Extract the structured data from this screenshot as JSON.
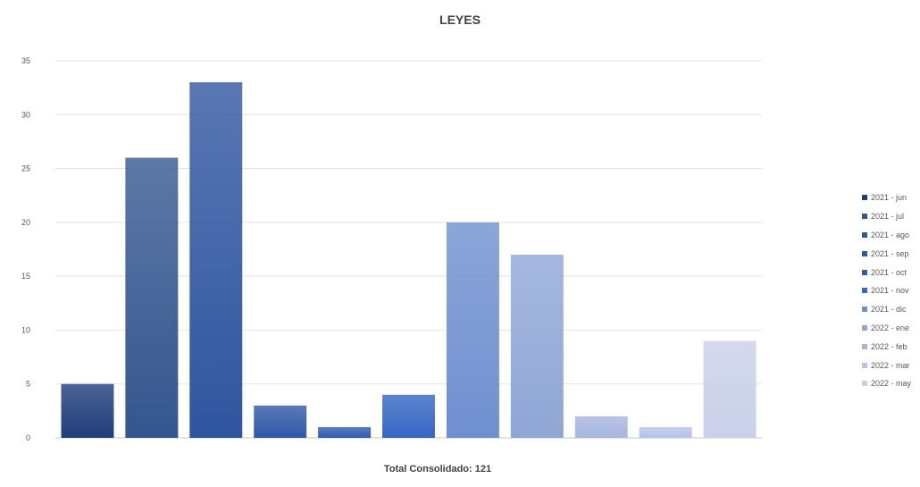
{
  "chart_data": {
    "type": "bar",
    "title": "LEYES",
    "categories": [
      "2021 - jun",
      "2021 - jul",
      "2021 - ago",
      "2021 - sep",
      "2021 - oct",
      "2021 - nov",
      "2021 - dic",
      "2022 - ene",
      "2022 - feb",
      "2022 - mar",
      "2022 - may"
    ],
    "values": [
      5,
      26,
      33,
      3,
      1,
      4,
      20,
      17,
      2,
      1,
      9
    ],
    "colors": [
      "#1f3d7a",
      "#34568f",
      "#2f55a0",
      "#3058a8",
      "#2f5cb0",
      "#3566c2",
      "#6f8fd0",
      "#8fa6d6",
      "#a7b5e0",
      "#b6c2e6",
      "#c9d0e8"
    ],
    "ylim": [
      0,
      35
    ],
    "yticks": [
      "0",
      "5",
      "10",
      "15",
      "20",
      "25",
      "30",
      "35"
    ],
    "grid": true,
    "legend_position": "right",
    "xlabel": "",
    "ylabel": ""
  },
  "footer": {
    "total_label": "Total Consolidado:",
    "total_value": "121"
  }
}
